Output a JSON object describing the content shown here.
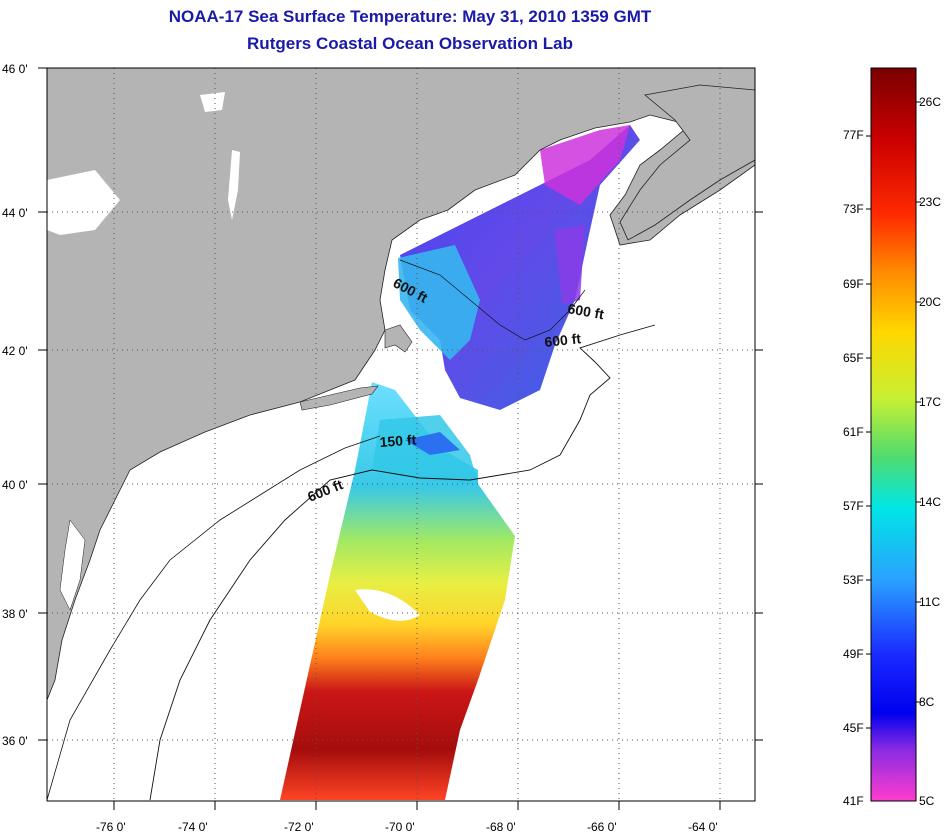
{
  "header": {
    "title": "NOAA-17 Sea Surface Temperature:  May 31, 2010 1359 GMT",
    "subtitle": "Rutgers Coastal Ocean Observation Lab"
  },
  "map": {
    "lon_range": [
      -77,
      -63
    ],
    "lat_range": [
      35,
      46
    ],
    "lon_ticks": [
      "-76 0'",
      "-74 0'",
      "-72 0'",
      "-70 0'",
      "-68 0'",
      "-66 0'",
      "-64 0'"
    ],
    "lat_ticks": [
      "46 0'",
      "44 0'",
      "42 0'",
      "40 0'",
      "38 0'",
      "36 0'"
    ],
    "land_color": "#b4b4b4",
    "contour_labels": [
      "600 ft",
      "600 ft",
      "600 ft",
      "150 ft",
      "600 ft"
    ]
  },
  "colorbar": {
    "fahrenheit_labels": [
      "77F",
      "73F",
      "69F",
      "65F",
      "61F",
      "57F",
      "53F",
      "49F",
      "45F",
      "41F"
    ],
    "celsius_labels": [
      "26C",
      "23C",
      "20C",
      "17C",
      "14C",
      "11C",
      "8C",
      "5C"
    ],
    "gradient_stops": [
      "#7a0000",
      "#cc0000",
      "#ff2a00",
      "#ff8c00",
      "#ffd700",
      "#c8f032",
      "#50dc6e",
      "#00e6e6",
      "#2aa0ff",
      "#1a2aff",
      "#0000ee",
      "#8a2be2",
      "#ff3ccf"
    ]
  }
}
